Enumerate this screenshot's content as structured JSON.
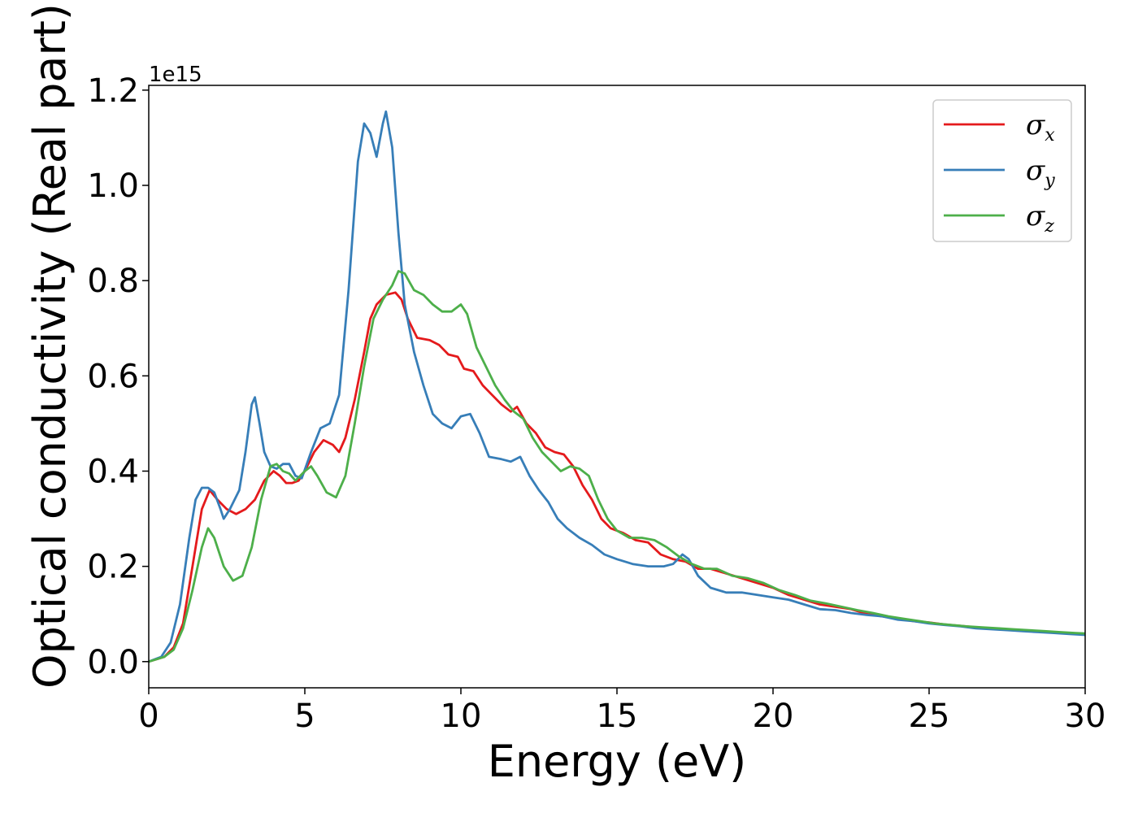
{
  "chart_data": {
    "type": "line",
    "xlabel": "Energy (eV)",
    "ylabel": "Optical conductivity (Real part)",
    "y_offset_label": "1e15",
    "xlim": [
      0,
      30
    ],
    "ylim": [
      -0.055,
      1.21
    ],
    "x_ticks": [
      0,
      5,
      10,
      15,
      20,
      25,
      30
    ],
    "x_tick_labels": [
      "0",
      "5",
      "10",
      "15",
      "20",
      "25",
      "30"
    ],
    "y_ticks": [
      0.0,
      0.2,
      0.4,
      0.6,
      0.8,
      1.0,
      1.2
    ],
    "y_tick_labels": [
      "0.0",
      "0.2",
      "0.4",
      "0.6",
      "0.8",
      "1.0",
      "1.2"
    ],
    "grid": false,
    "legend_position": "top-right",
    "series": [
      {
        "name": "σx",
        "symbol": "σ",
        "subscript": "x",
        "color": "#e41a1c",
        "points": [
          [
            0,
            0
          ],
          [
            0.5,
            0.01
          ],
          [
            0.8,
            0.03
          ],
          [
            1.1,
            0.08
          ],
          [
            1.4,
            0.2
          ],
          [
            1.7,
            0.32
          ],
          [
            1.95,
            0.36
          ],
          [
            2.2,
            0.34
          ],
          [
            2.5,
            0.32
          ],
          [
            2.8,
            0.31
          ],
          [
            3.1,
            0.32
          ],
          [
            3.4,
            0.34
          ],
          [
            3.7,
            0.38
          ],
          [
            4.0,
            0.4
          ],
          [
            4.2,
            0.39
          ],
          [
            4.4,
            0.375
          ],
          [
            4.6,
            0.375
          ],
          [
            4.8,
            0.38
          ],
          [
            5.0,
            0.4
          ],
          [
            5.3,
            0.44
          ],
          [
            5.6,
            0.465
          ],
          [
            5.9,
            0.455
          ],
          [
            6.1,
            0.44
          ],
          [
            6.3,
            0.47
          ],
          [
            6.6,
            0.55
          ],
          [
            6.9,
            0.65
          ],
          [
            7.1,
            0.72
          ],
          [
            7.3,
            0.75
          ],
          [
            7.6,
            0.77
          ],
          [
            7.9,
            0.775
          ],
          [
            8.1,
            0.76
          ],
          [
            8.3,
            0.72
          ],
          [
            8.6,
            0.68
          ],
          [
            9.0,
            0.675
          ],
          [
            9.3,
            0.665
          ],
          [
            9.6,
            0.645
          ],
          [
            9.9,
            0.64
          ],
          [
            10.1,
            0.615
          ],
          [
            10.4,
            0.61
          ],
          [
            10.7,
            0.58
          ],
          [
            11.0,
            0.56
          ],
          [
            11.3,
            0.54
          ],
          [
            11.6,
            0.525
          ],
          [
            11.8,
            0.535
          ],
          [
            12.1,
            0.5
          ],
          [
            12.4,
            0.48
          ],
          [
            12.7,
            0.45
          ],
          [
            13.0,
            0.44
          ],
          [
            13.3,
            0.435
          ],
          [
            13.6,
            0.41
          ],
          [
            13.9,
            0.37
          ],
          [
            14.2,
            0.34
          ],
          [
            14.5,
            0.3
          ],
          [
            14.8,
            0.28
          ],
          [
            15.2,
            0.27
          ],
          [
            15.6,
            0.255
          ],
          [
            16.0,
            0.25
          ],
          [
            16.4,
            0.225
          ],
          [
            16.8,
            0.215
          ],
          [
            17.2,
            0.21
          ],
          [
            17.6,
            0.195
          ],
          [
            18.0,
            0.195
          ],
          [
            18.5,
            0.185
          ],
          [
            19.0,
            0.175
          ],
          [
            19.5,
            0.165
          ],
          [
            20.0,
            0.155
          ],
          [
            20.5,
            0.14
          ],
          [
            21.0,
            0.13
          ],
          [
            21.5,
            0.12
          ],
          [
            22.0,
            0.115
          ],
          [
            22.5,
            0.11
          ],
          [
            23.0,
            0.1
          ],
          [
            23.5,
            0.095
          ],
          [
            24.0,
            0.09
          ],
          [
            24.5,
            0.085
          ],
          [
            25.0,
            0.082
          ],
          [
            25.5,
            0.078
          ],
          [
            26.0,
            0.075
          ],
          [
            26.5,
            0.072
          ],
          [
            27.0,
            0.07
          ],
          [
            27.5,
            0.068
          ],
          [
            28.0,
            0.065
          ],
          [
            28.5,
            0.063
          ],
          [
            29.0,
            0.062
          ],
          [
            29.5,
            0.06
          ],
          [
            30.0,
            0.058
          ]
        ]
      },
      {
        "name": "σy",
        "symbol": "σ",
        "subscript": "y",
        "color": "#377eb8",
        "points": [
          [
            0,
            0
          ],
          [
            0.4,
            0.01
          ],
          [
            0.7,
            0.04
          ],
          [
            1.0,
            0.12
          ],
          [
            1.3,
            0.26
          ],
          [
            1.5,
            0.34
          ],
          [
            1.7,
            0.365
          ],
          [
            1.9,
            0.365
          ],
          [
            2.1,
            0.355
          ],
          [
            2.3,
            0.32
          ],
          [
            2.4,
            0.3
          ],
          [
            2.6,
            0.32
          ],
          [
            2.9,
            0.36
          ],
          [
            3.1,
            0.44
          ],
          [
            3.3,
            0.54
          ],
          [
            3.4,
            0.555
          ],
          [
            3.55,
            0.5
          ],
          [
            3.7,
            0.44
          ],
          [
            3.9,
            0.41
          ],
          [
            4.1,
            0.405
          ],
          [
            4.3,
            0.415
          ],
          [
            4.5,
            0.415
          ],
          [
            4.7,
            0.39
          ],
          [
            4.9,
            0.385
          ],
          [
            5.2,
            0.44
          ],
          [
            5.5,
            0.49
          ],
          [
            5.8,
            0.5
          ],
          [
            6.1,
            0.56
          ],
          [
            6.4,
            0.78
          ],
          [
            6.7,
            1.05
          ],
          [
            6.9,
            1.13
          ],
          [
            7.1,
            1.11
          ],
          [
            7.3,
            1.06
          ],
          [
            7.5,
            1.13
          ],
          [
            7.6,
            1.155
          ],
          [
            7.8,
            1.08
          ],
          [
            8.0,
            0.9
          ],
          [
            8.2,
            0.75
          ],
          [
            8.5,
            0.65
          ],
          [
            8.8,
            0.58
          ],
          [
            9.1,
            0.52
          ],
          [
            9.4,
            0.5
          ],
          [
            9.7,
            0.49
          ],
          [
            10.0,
            0.515
          ],
          [
            10.3,
            0.52
          ],
          [
            10.6,
            0.48
          ],
          [
            10.9,
            0.43
          ],
          [
            11.3,
            0.425
          ],
          [
            11.6,
            0.42
          ],
          [
            11.9,
            0.43
          ],
          [
            12.2,
            0.39
          ],
          [
            12.5,
            0.36
          ],
          [
            12.8,
            0.335
          ],
          [
            13.1,
            0.3
          ],
          [
            13.4,
            0.28
          ],
          [
            13.8,
            0.26
          ],
          [
            14.2,
            0.245
          ],
          [
            14.6,
            0.225
          ],
          [
            15.0,
            0.215
          ],
          [
            15.5,
            0.205
          ],
          [
            16.0,
            0.2
          ],
          [
            16.5,
            0.2
          ],
          [
            16.8,
            0.205
          ],
          [
            17.1,
            0.225
          ],
          [
            17.3,
            0.215
          ],
          [
            17.6,
            0.18
          ],
          [
            18.0,
            0.155
          ],
          [
            18.5,
            0.145
          ],
          [
            19.0,
            0.145
          ],
          [
            19.5,
            0.14
          ],
          [
            20.0,
            0.135
          ],
          [
            20.5,
            0.13
          ],
          [
            21.0,
            0.12
          ],
          [
            21.5,
            0.11
          ],
          [
            22.0,
            0.108
          ],
          [
            22.5,
            0.102
          ],
          [
            23.0,
            0.098
          ],
          [
            23.5,
            0.095
          ],
          [
            24.0,
            0.088
          ],
          [
            24.5,
            0.085
          ],
          [
            25.0,
            0.08
          ],
          [
            25.5,
            0.077
          ],
          [
            26.0,
            0.074
          ],
          [
            26.5,
            0.07
          ],
          [
            27.0,
            0.068
          ],
          [
            27.5,
            0.066
          ],
          [
            28.0,
            0.064
          ],
          [
            28.5,
            0.062
          ],
          [
            29.0,
            0.06
          ],
          [
            29.5,
            0.058
          ],
          [
            30.0,
            0.056
          ]
        ]
      },
      {
        "name": "σz",
        "symbol": "σ",
        "subscript": "z",
        "color": "#4daf4a",
        "points": [
          [
            0,
            0
          ],
          [
            0.5,
            0.01
          ],
          [
            0.8,
            0.025
          ],
          [
            1.1,
            0.07
          ],
          [
            1.4,
            0.15
          ],
          [
            1.7,
            0.24
          ],
          [
            1.9,
            0.28
          ],
          [
            2.1,
            0.26
          ],
          [
            2.4,
            0.2
          ],
          [
            2.7,
            0.17
          ],
          [
            3.0,
            0.18
          ],
          [
            3.3,
            0.24
          ],
          [
            3.6,
            0.34
          ],
          [
            3.9,
            0.41
          ],
          [
            4.1,
            0.415
          ],
          [
            4.3,
            0.4
          ],
          [
            4.5,
            0.395
          ],
          [
            4.7,
            0.38
          ],
          [
            5.0,
            0.4
          ],
          [
            5.2,
            0.41
          ],
          [
            5.4,
            0.39
          ],
          [
            5.7,
            0.355
          ],
          [
            6.0,
            0.345
          ],
          [
            6.3,
            0.39
          ],
          [
            6.6,
            0.5
          ],
          [
            6.9,
            0.62
          ],
          [
            7.2,
            0.72
          ],
          [
            7.5,
            0.76
          ],
          [
            7.8,
            0.79
          ],
          [
            8.0,
            0.82
          ],
          [
            8.2,
            0.815
          ],
          [
            8.5,
            0.78
          ],
          [
            8.8,
            0.77
          ],
          [
            9.1,
            0.75
          ],
          [
            9.4,
            0.735
          ],
          [
            9.7,
            0.735
          ],
          [
            10.0,
            0.75
          ],
          [
            10.2,
            0.73
          ],
          [
            10.5,
            0.66
          ],
          [
            10.8,
            0.62
          ],
          [
            11.1,
            0.58
          ],
          [
            11.4,
            0.55
          ],
          [
            11.7,
            0.525
          ],
          [
            12.0,
            0.51
          ],
          [
            12.3,
            0.47
          ],
          [
            12.6,
            0.44
          ],
          [
            12.9,
            0.42
          ],
          [
            13.2,
            0.4
          ],
          [
            13.5,
            0.41
          ],
          [
            13.8,
            0.405
          ],
          [
            14.1,
            0.39
          ],
          [
            14.4,
            0.34
          ],
          [
            14.7,
            0.3
          ],
          [
            15.0,
            0.275
          ],
          [
            15.4,
            0.26
          ],
          [
            15.8,
            0.26
          ],
          [
            16.2,
            0.255
          ],
          [
            16.6,
            0.24
          ],
          [
            17.0,
            0.22
          ],
          [
            17.4,
            0.205
          ],
          [
            17.8,
            0.195
          ],
          [
            18.2,
            0.195
          ],
          [
            18.7,
            0.18
          ],
          [
            19.2,
            0.175
          ],
          [
            19.7,
            0.165
          ],
          [
            20.2,
            0.15
          ],
          [
            20.7,
            0.14
          ],
          [
            21.2,
            0.128
          ],
          [
            21.7,
            0.122
          ],
          [
            22.2,
            0.115
          ],
          [
            22.7,
            0.108
          ],
          [
            23.2,
            0.102
          ],
          [
            23.7,
            0.095
          ],
          [
            24.2,
            0.09
          ],
          [
            24.7,
            0.085
          ],
          [
            25.2,
            0.08
          ],
          [
            25.7,
            0.077
          ],
          [
            26.2,
            0.074
          ],
          [
            26.7,
            0.072
          ],
          [
            27.2,
            0.07
          ],
          [
            27.7,
            0.068
          ],
          [
            28.2,
            0.066
          ],
          [
            28.7,
            0.064
          ],
          [
            29.2,
            0.062
          ],
          [
            29.7,
            0.06
          ],
          [
            30.0,
            0.059
          ]
        ]
      }
    ]
  }
}
